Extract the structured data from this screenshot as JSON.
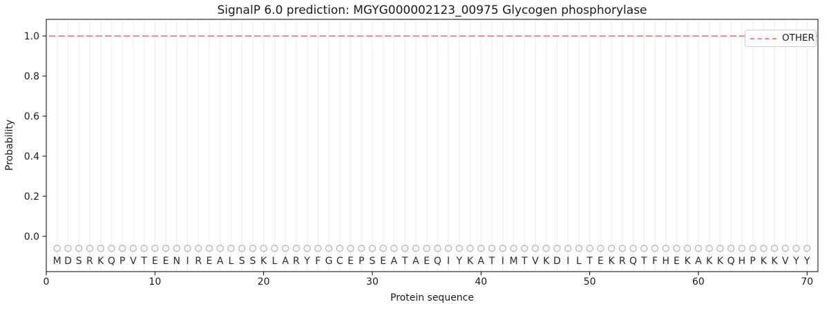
{
  "figure": {
    "title": "SignalP 6.0 prediction: MGYG000002123_00975 Glycogen phosphorylase",
    "xlabel": "Protein sequence",
    "ylabel": "Probability"
  },
  "legend": {
    "position": "upper right",
    "items": [
      {
        "label": "OTHER",
        "color": "#ee888c",
        "linestyle": "dashed"
      }
    ]
  },
  "colors": {
    "background": "#ffffff",
    "other_line": "#ee888c",
    "gridline": "#f1f1f1",
    "marker_outline": "#b0b0b0",
    "residue_text": "#2b2b2b",
    "tick_text": "#1a1a1a",
    "spine": "#000000",
    "legend_border": "#cccccc"
  },
  "chart_data": {
    "type": "line",
    "title": "SignalP 6.0 prediction: MGYG000002123_00975 Glycogen phosphorylase",
    "xlabel": "Protein sequence",
    "ylabel": "Probability",
    "xlim": [
      0,
      71
    ],
    "ylim": [
      -0.176,
      1.083
    ],
    "xticks": [
      0,
      10,
      20,
      30,
      40,
      50,
      60,
      70
    ],
    "yticks": [
      0.0,
      0.2,
      0.4,
      0.6,
      0.8,
      1.0
    ],
    "grid": "vertical gridline at every residue position, no horizontal gridlines",
    "legend_position": "upper right",
    "sequence": "MDSRKQPVTEENIREALSSKLARYFGCEPSEATAEQIYKATIMTVKDILTEKRQTFHEKAKKQHPKKVYY",
    "residue_markers": {
      "symbol": "open-circle",
      "y": -0.06,
      "color": "#b0b0b0"
    },
    "series": [
      {
        "name": "OTHER",
        "color": "#ee888c",
        "linestyle": "dashed",
        "x": [
          1,
          2,
          3,
          4,
          5,
          6,
          7,
          8,
          9,
          10,
          11,
          12,
          13,
          14,
          15,
          16,
          17,
          18,
          19,
          20,
          21,
          22,
          23,
          24,
          25,
          26,
          27,
          28,
          29,
          30,
          31,
          32,
          33,
          34,
          35,
          36,
          37,
          38,
          39,
          40,
          41,
          42,
          43,
          44,
          45,
          46,
          47,
          48,
          49,
          50,
          51,
          52,
          53,
          54,
          55,
          56,
          57,
          58,
          59,
          60,
          61,
          62,
          63,
          64,
          65,
          66,
          67,
          68,
          69,
          70
        ],
        "values": [
          1.0,
          1.0,
          1.0,
          1.0,
          1.0,
          1.0,
          1.0,
          1.0,
          1.0,
          1.0,
          1.0,
          1.0,
          1.0,
          1.0,
          1.0,
          1.0,
          1.0,
          1.0,
          1.0,
          1.0,
          1.0,
          1.0,
          1.0,
          1.0,
          1.0,
          1.0,
          1.0,
          1.0,
          1.0,
          1.0,
          1.0,
          1.0,
          1.0,
          1.0,
          1.0,
          1.0,
          1.0,
          1.0,
          1.0,
          1.0,
          1.0,
          1.0,
          1.0,
          1.0,
          1.0,
          1.0,
          1.0,
          1.0,
          1.0,
          1.0,
          1.0,
          1.0,
          1.0,
          1.0,
          1.0,
          1.0,
          1.0,
          1.0,
          1.0,
          1.0,
          1.0,
          1.0,
          1.0,
          1.0,
          1.0,
          1.0,
          1.0,
          1.0,
          1.0,
          1.0
        ]
      }
    ]
  }
}
